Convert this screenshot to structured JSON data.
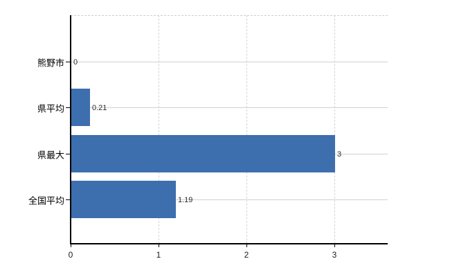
{
  "chart_data": {
    "type": "bar",
    "orientation": "horizontal",
    "title": "",
    "xlabel": "",
    "ylabel": "",
    "categories": [
      "熊野市",
      "県平均",
      "県最大",
      "全国平均"
    ],
    "values": [
      0,
      0.21,
      3,
      1.19
    ],
    "value_labels": [
      "0",
      "0.21",
      "3",
      "1.19"
    ],
    "xticks": [
      0,
      1,
      2,
      3
    ],
    "xtick_labels": [
      "0",
      "1",
      "2",
      "3"
    ],
    "xlim": [
      0,
      3.6
    ],
    "grid": true,
    "legend": false,
    "bar_color": "#3d6ead",
    "hgrid_color": "#ccd4cc",
    "vgrid_color": "#d6d2d2",
    "axis_color": "#000000"
  }
}
